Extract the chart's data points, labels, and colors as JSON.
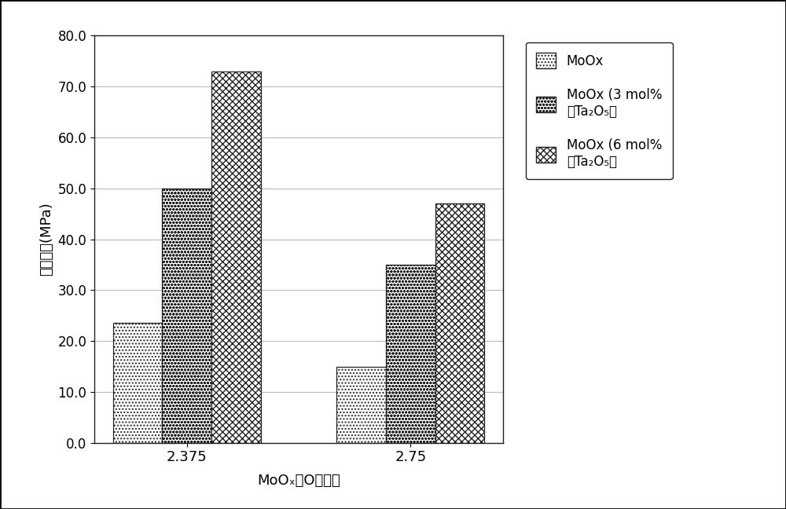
{
  "categories": [
    "2.375",
    "2.75"
  ],
  "series": [
    {
      "label": "MoOx",
      "values": [
        23.5,
        15.0
      ]
    },
    {
      "label": "MoOx (3 mol%\n的Ta₂O₅）",
      "values": [
        50.0,
        35.0
      ]
    },
    {
      "label": "MoOx (6 mol%\n的Ta₂O₅）",
      "values": [
        73.0,
        47.0
      ]
    }
  ],
  "ylabel": "抗弯强度(MPa)",
  "xlabel": "MoOₓ中O的比例",
  "ylim": [
    0.0,
    80.0
  ],
  "yticks": [
    0.0,
    10.0,
    20.0,
    30.0,
    40.0,
    50.0,
    60.0,
    70.0,
    80.0
  ],
  "bar_width": 0.22,
  "bar_edge_color": "#222222",
  "background_color": "#ffffff",
  "hatch_patterns": [
    "....",
    "oooo",
    "xxxx"
  ],
  "face_colors": [
    "#ffffff",
    "#ffffff",
    "#ffffff"
  ],
  "axis_fontsize": 13,
  "tick_fontsize": 12,
  "legend_fontsize": 12
}
